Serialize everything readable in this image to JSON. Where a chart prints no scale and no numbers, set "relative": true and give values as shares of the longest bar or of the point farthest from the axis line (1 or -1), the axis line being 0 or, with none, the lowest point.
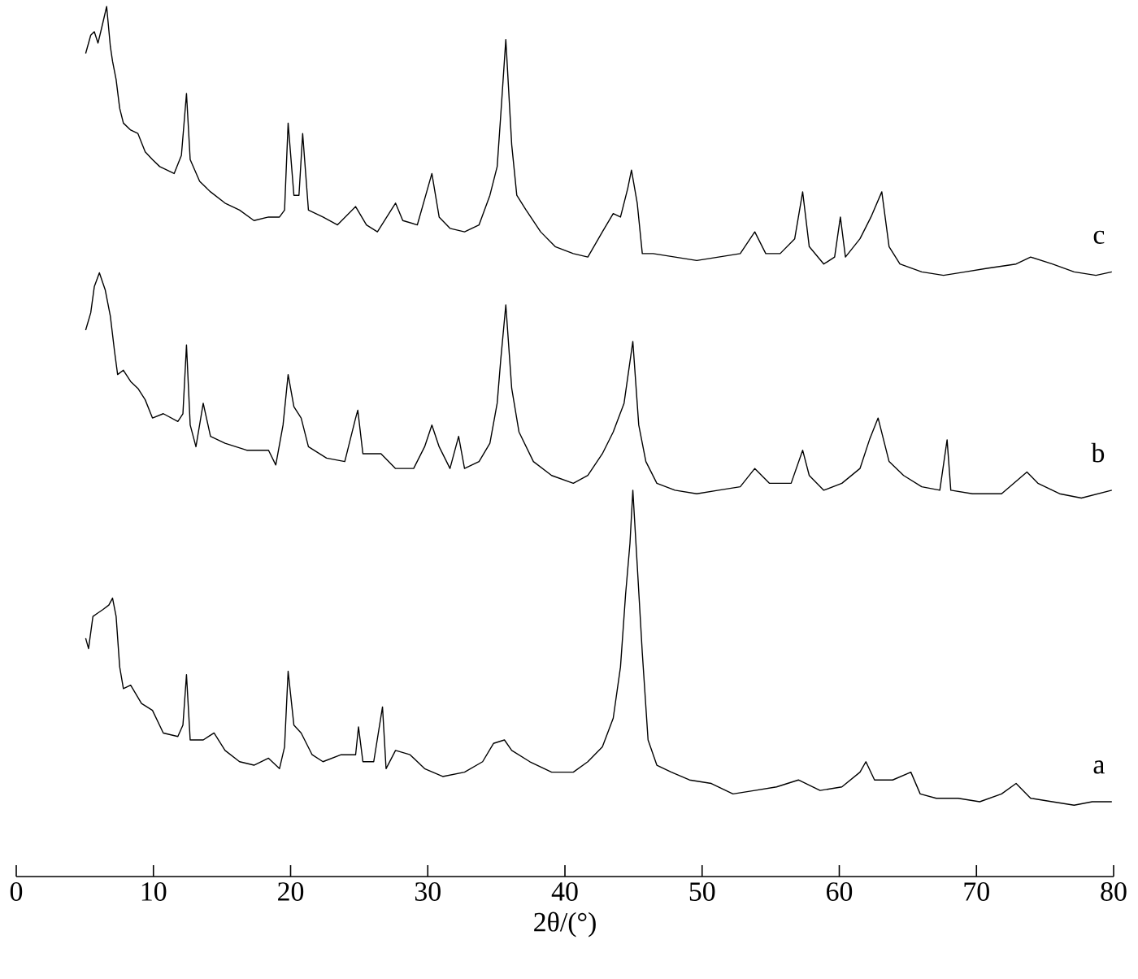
{
  "chart_data": {
    "type": "line",
    "relative": true,
    "xlabel": "2θ/(°)",
    "xlim": [
      0,
      80
    ],
    "xticks": [
      0,
      10,
      20,
      30,
      40,
      50,
      60,
      70,
      80
    ],
    "grid": false,
    "legend": false,
    "marker": "none",
    "line_style": "solid",
    "series": [
      {
        "name": "a",
        "color": "#000000",
        "x": [
          5.06,
          5.27,
          5.59,
          5.96,
          6.33,
          6.75,
          7.02,
          7.28,
          7.54,
          7.81,
          8.34,
          9.13,
          9.93,
          10.72,
          11.78,
          12.15,
          12.41,
          12.68,
          13.63,
          14.42,
          15.22,
          16.28,
          17.33,
          18.39,
          19.19,
          19.56,
          19.82,
          20.24,
          20.77,
          21.57,
          22.36,
          23.68,
          24.74,
          24.95,
          25.27,
          26.06,
          26.7,
          26.96,
          27.65,
          28.71,
          29.77,
          31.09,
          32.68,
          34.0,
          34.79,
          35.59,
          36.12,
          37.44,
          39.03,
          40.61,
          41.67,
          42.73,
          43.52,
          44.05,
          44.42,
          44.74,
          44.95,
          45.27,
          45.64,
          46.06,
          46.7,
          47.76,
          49.08,
          50.67,
          52.25,
          53.84,
          55.43,
          57.02,
          58.6,
          60.19,
          61.51,
          61.94,
          62.57,
          63.89,
          65.22,
          65.9,
          67.07,
          68.66,
          70.24,
          71.83,
          72.89,
          73.95,
          75.53,
          77.12,
          78.44,
          79.87
        ],
        "values": [
          0.274,
          0.262,
          0.299,
          0.303,
          0.307,
          0.312,
          0.32,
          0.299,
          0.241,
          0.216,
          0.22,
          0.199,
          0.191,
          0.165,
          0.161,
          0.174,
          0.232,
          0.157,
          0.157,
          0.165,
          0.145,
          0.132,
          0.128,
          0.136,
          0.124,
          0.149,
          0.236,
          0.174,
          0.165,
          0.14,
          0.132,
          0.14,
          0.14,
          0.172,
          0.132,
          0.132,
          0.195,
          0.124,
          0.145,
          0.14,
          0.124,
          0.115,
          0.12,
          0.132,
          0.153,
          0.157,
          0.145,
          0.132,
          0.12,
          0.12,
          0.132,
          0.149,
          0.182,
          0.241,
          0.324,
          0.383,
          0.444,
          0.358,
          0.257,
          0.157,
          0.128,
          0.12,
          0.111,
          0.107,
          0.095,
          0.099,
          0.103,
          0.111,
          0.099,
          0.103,
          0.12,
          0.132,
          0.111,
          0.111,
          0.12,
          0.095,
          0.09,
          0.09,
          0.086,
          0.095,
          0.107,
          0.09,
          0.086,
          0.082,
          0.086,
          0.086
        ]
      },
      {
        "name": "b",
        "color": "#000000",
        "x": [
          5.06,
          5.43,
          5.69,
          6.06,
          6.49,
          6.86,
          7.17,
          7.39,
          7.81,
          8.34,
          8.87,
          9.4,
          9.93,
          10.72,
          11.78,
          12.15,
          12.41,
          12.68,
          13.1,
          13.63,
          14.16,
          15.22,
          16.8,
          18.39,
          18.92,
          19.45,
          19.82,
          20.24,
          20.77,
          21.3,
          22.62,
          23.95,
          24.74,
          24.9,
          25.27,
          26.59,
          27.65,
          28.97,
          29.77,
          30.3,
          30.83,
          31.62,
          32.25,
          32.68,
          33.74,
          34.53,
          35.06,
          35.32,
          35.69,
          36.12,
          36.65,
          37.7,
          39.03,
          40.61,
          41.67,
          42.73,
          43.52,
          44.31,
          44.95,
          45.38,
          45.9,
          46.7,
          48.02,
          49.61,
          51.2,
          52.78,
          53.84,
          54.9,
          56.49,
          57.33,
          57.81,
          58.87,
          60.19,
          61.51,
          62.2,
          62.83,
          63.63,
          64.69,
          66.01,
          67.33,
          67.86,
          68.13,
          69.71,
          71.83,
          73.68,
          74.48,
          76.06,
          77.65,
          79.87
        ],
        "values": [
          0.628,
          0.648,
          0.678,
          0.694,
          0.674,
          0.644,
          0.603,
          0.577,
          0.582,
          0.569,
          0.561,
          0.548,
          0.527,
          0.532,
          0.523,
          0.532,
          0.611,
          0.519,
          0.494,
          0.544,
          0.506,
          0.498,
          0.49,
          0.49,
          0.473,
          0.519,
          0.577,
          0.54,
          0.527,
          0.494,
          0.481,
          0.477,
          0.527,
          0.536,
          0.486,
          0.486,
          0.469,
          0.469,
          0.494,
          0.519,
          0.494,
          0.469,
          0.506,
          0.469,
          0.477,
          0.498,
          0.544,
          0.594,
          0.657,
          0.561,
          0.511,
          0.477,
          0.461,
          0.452,
          0.461,
          0.486,
          0.511,
          0.544,
          0.615,
          0.519,
          0.477,
          0.452,
          0.444,
          0.44,
          0.444,
          0.448,
          0.469,
          0.452,
          0.452,
          0.49,
          0.461,
          0.444,
          0.452,
          0.469,
          0.502,
          0.527,
          0.477,
          0.461,
          0.448,
          0.444,
          0.502,
          0.444,
          0.44,
          0.44,
          0.465,
          0.452,
          0.44,
          0.435,
          0.444
        ]
      },
      {
        "name": "c",
        "color": "#000000",
        "x": [
          5.06,
          5.43,
          5.69,
          5.96,
          6.22,
          6.59,
          6.86,
          7.02,
          7.28,
          7.54,
          7.81,
          8.34,
          8.87,
          9.4,
          9.93,
          10.46,
          11.51,
          12.04,
          12.41,
          12.68,
          13.37,
          14.16,
          15.22,
          16.28,
          17.33,
          18.39,
          19.19,
          19.56,
          19.82,
          20.24,
          20.61,
          20.88,
          21.3,
          22.36,
          23.42,
          24.74,
          25.53,
          26.33,
          27.65,
          28.18,
          29.24,
          30.3,
          30.83,
          31.62,
          32.68,
          33.74,
          34.53,
          35.06,
          35.32,
          35.69,
          36.12,
          36.49,
          37.17,
          38.23,
          39.29,
          40.61,
          41.67,
          42.73,
          43.52,
          44.05,
          44.58,
          44.85,
          45.27,
          45.64,
          46.43,
          48.02,
          49.61,
          51.2,
          52.78,
          53.84,
          54.64,
          55.69,
          56.75,
          57.33,
          57.81,
          58.87,
          59.66,
          60.08,
          60.45,
          61.51,
          62.31,
          63.1,
          63.63,
          64.42,
          66.01,
          67.6,
          69.18,
          70.77,
          72.89,
          73.95,
          75.53,
          77.12,
          78.71,
          79.87
        ],
        "values": [
          0.946,
          0.967,
          0.971,
          0.958,
          0.975,
          1.0,
          0.954,
          0.937,
          0.916,
          0.883,
          0.866,
          0.858,
          0.854,
          0.833,
          0.824,
          0.816,
          0.808,
          0.829,
          0.9,
          0.824,
          0.799,
          0.787,
          0.774,
          0.766,
          0.754,
          0.758,
          0.758,
          0.766,
          0.866,
          0.783,
          0.783,
          0.854,
          0.766,
          0.758,
          0.749,
          0.77,
          0.749,
          0.741,
          0.774,
          0.754,
          0.749,
          0.808,
          0.758,
          0.745,
          0.741,
          0.749,
          0.783,
          0.816,
          0.875,
          0.962,
          0.841,
          0.783,
          0.766,
          0.741,
          0.724,
          0.716,
          0.712,
          0.741,
          0.762,
          0.758,
          0.791,
          0.812,
          0.774,
          0.716,
          0.716,
          0.712,
          0.708,
          0.712,
          0.716,
          0.741,
          0.716,
          0.716,
          0.733,
          0.787,
          0.724,
          0.704,
          0.712,
          0.758,
          0.712,
          0.733,
          0.758,
          0.787,
          0.724,
          0.704,
          0.695,
          0.691,
          0.695,
          0.699,
          0.704,
          0.712,
          0.704,
          0.695,
          0.691,
          0.695
        ]
      }
    ]
  }
}
